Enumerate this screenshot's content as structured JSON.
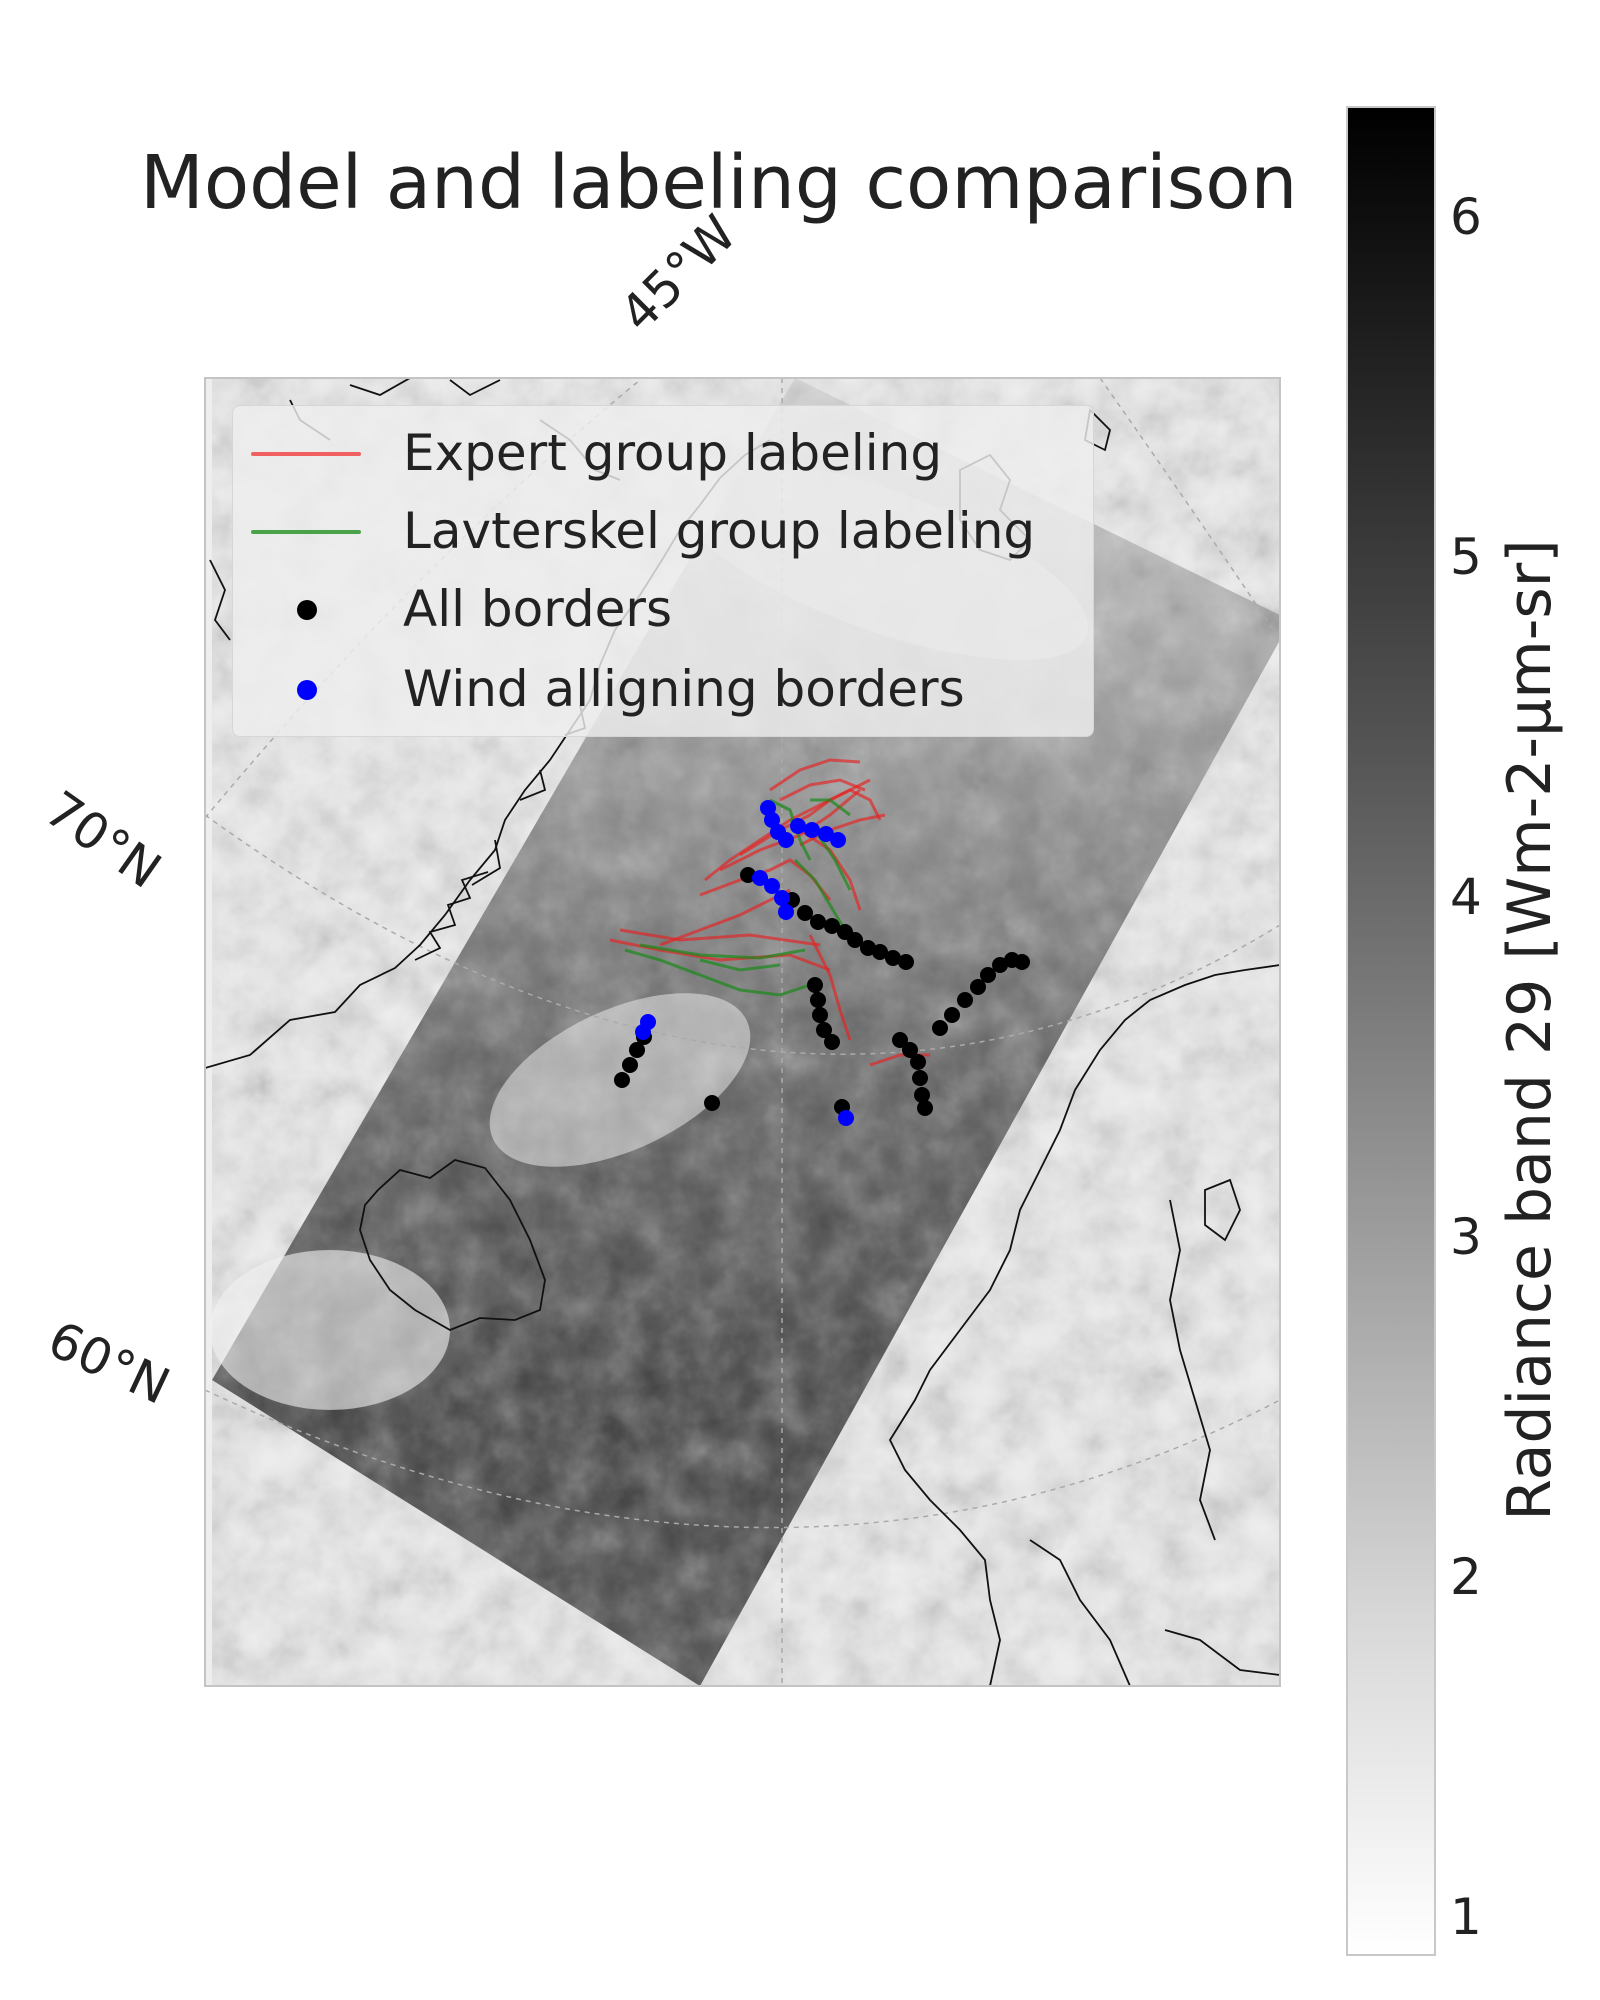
{
  "title": "Model and labeling comparison",
  "axes": {
    "lon_labels": [
      "45°W"
    ],
    "lat_labels": [
      "70°N",
      "60°N"
    ]
  },
  "legend": {
    "placement": "upper-left",
    "entries": [
      {
        "label": "Expert group labeling",
        "kind": "line",
        "color": "#f06060"
      },
      {
        "label": "Lavterskel group labeling",
        "kind": "line",
        "color": "#4aa34a"
      },
      {
        "label": "All borders",
        "kind": "dot",
        "color": "#000000"
      },
      {
        "label": "Wind alligning borders",
        "kind": "dot",
        "color": "#0000ff"
      }
    ]
  },
  "colorbar": {
    "label": "Radiance band 29 [Wm-2-µm-sr]",
    "ticks": [
      "6",
      "5",
      "4",
      "3",
      "2",
      "1"
    ],
    "range": [
      1,
      6.3
    ],
    "colormap": "greys"
  },
  "colors": {
    "background": "#eeeeee",
    "expert": "#e82020",
    "lavterskel": "#1a8a1a",
    "all_borders": "#000000",
    "wind_aligning": "#0000ff",
    "coastline": "#111111",
    "grid": "#aaaaaa"
  }
}
